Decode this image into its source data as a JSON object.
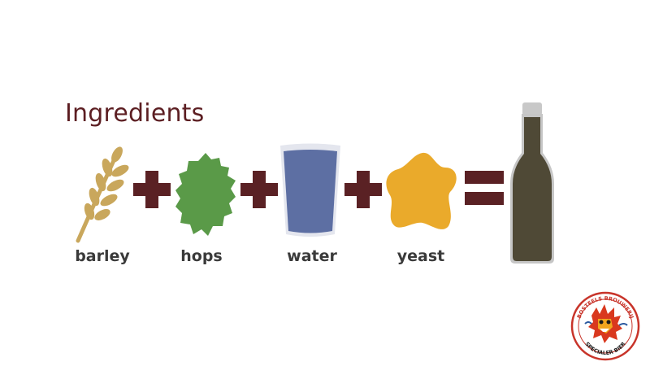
{
  "title": "Ingredients",
  "ingredients": [
    {
      "label": "barley",
      "icon": "barley-icon"
    },
    {
      "label": "hops",
      "icon": "hop-leaf-icon"
    },
    {
      "label": "water",
      "icon": "water-glass-icon"
    },
    {
      "label": "yeast",
      "icon": "yeast-icon"
    }
  ],
  "result": {
    "icon": "beer-bottle-icon"
  },
  "colors": {
    "title": "#5c1e22",
    "operator": "#5a2124",
    "barley": "#c9a75c",
    "hops": "#5a9a48",
    "water": "#5d6fa3",
    "yeast": "#eaaa2b",
    "bottle": "#4f4936"
  },
  "logo": {
    "top_text": "BOSTEELS BROUWERIJ",
    "bottom_text": "SPECIALER BIER"
  }
}
